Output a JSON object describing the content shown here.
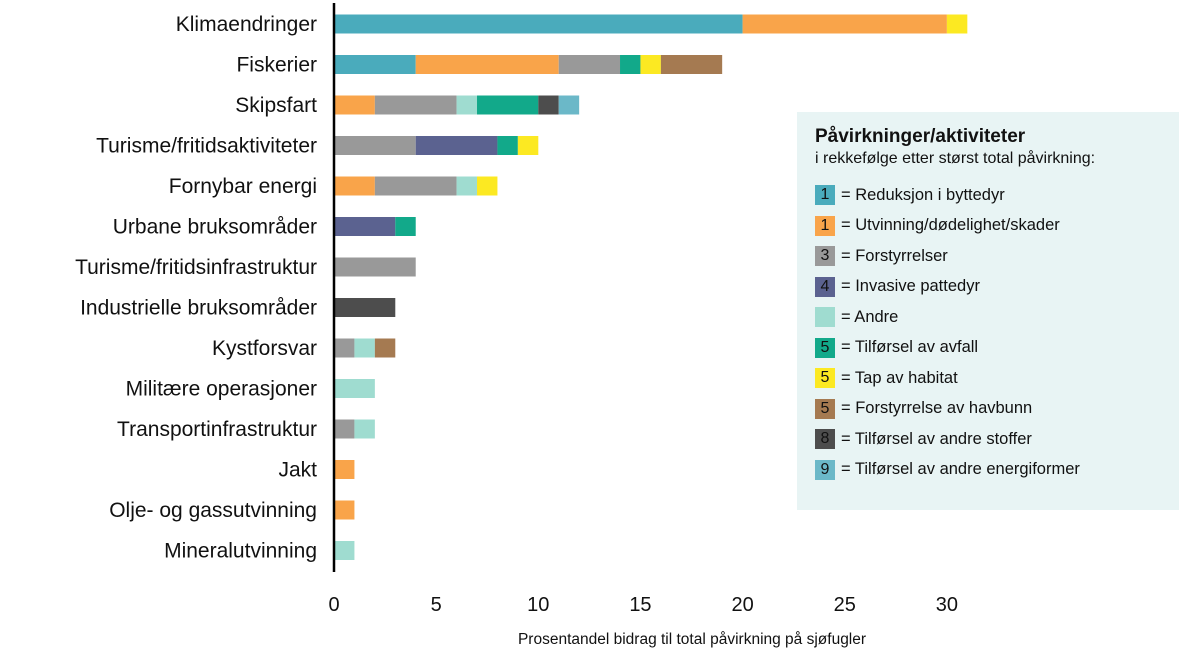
{
  "chart_data": {
    "type": "bar",
    "orientation": "horizontal",
    "stacked": true,
    "xlabel": "Prosentandel bidrag til total påvirkning på sjøfugler",
    "ylabel": "",
    "xlim": [
      0,
      31
    ],
    "xticks": [
      "0",
      "5",
      "10",
      "15",
      "20",
      "25",
      "30"
    ],
    "categories": [
      "Klimaendringer",
      "Fiskerier",
      "Skipsfart",
      "Turisme/fritidsaktiviteter",
      "Fornybar energi",
      "Urbane bruksområder",
      "Turisme/fritidsinfrastruktur",
      "Industrielle bruksområder",
      "Kystforsvar",
      "Militære operasjoner",
      "Transportinfrastruktur",
      "Jakt",
      "Olje- og gassutvinning",
      "Mineralutvinning"
    ],
    "series": [
      {
        "name": "Reduksjon i byttedyr",
        "rank": "1",
        "color": "#4aabbc",
        "values": [
          20,
          4,
          0,
          0,
          0,
          0,
          0,
          0,
          0,
          0,
          0,
          0,
          0,
          0
        ]
      },
      {
        "name": "Utvinning/dødelighet/skader",
        "rank": "1",
        "color": "#f9a44a",
        "values": [
          10,
          7,
          2,
          0,
          2,
          0,
          0,
          0,
          0,
          0,
          0,
          1,
          1,
          0
        ]
      },
      {
        "name": "Forstyrrelser",
        "rank": "3",
        "color": "#999999",
        "values": [
          0,
          3,
          4,
          4,
          4,
          0,
          4,
          0,
          1,
          0,
          1,
          0,
          0,
          0
        ]
      },
      {
        "name": "Invasive pattedyr",
        "rank": "4",
        "color": "#5b6290",
        "values": [
          0,
          0,
          0,
          4,
          0,
          3,
          0,
          0,
          0,
          0,
          0,
          0,
          0,
          0
        ]
      },
      {
        "name": "Andre",
        "rank": "",
        "color": "#9fdcd0",
        "values": [
          0,
          0,
          1,
          0,
          1,
          0,
          0,
          0,
          1,
          2,
          1,
          0,
          0,
          1
        ]
      },
      {
        "name": "Tilførsel av avfall",
        "rank": "5",
        "color": "#12a98a",
        "values": [
          0,
          1,
          3,
          1,
          0,
          1,
          0,
          0,
          0,
          0,
          0,
          0,
          0,
          0
        ]
      },
      {
        "name": "Tap av habitat",
        "rank": "5",
        "color": "#fce922",
        "values": [
          1,
          1,
          0,
          1,
          1,
          0,
          0,
          0,
          0,
          0,
          0,
          0,
          0,
          0
        ]
      },
      {
        "name": "Forstyrrelse av havbunn",
        "rank": "5",
        "color": "#a57a51",
        "values": [
          0,
          3,
          0,
          0,
          0,
          0,
          0,
          0,
          1,
          0,
          0,
          0,
          0,
          0
        ]
      },
      {
        "name": "Tilførsel av andre stoffer",
        "rank": "8",
        "color": "#4d4d4d",
        "values": [
          0,
          0,
          1,
          0,
          0,
          0,
          0,
          3,
          0,
          0,
          0,
          0,
          0,
          0
        ]
      },
      {
        "name": "Tilførsel av andre energiformer",
        "rank": "9",
        "color": "#6bb8c8",
        "values": [
          0,
          0,
          1,
          0,
          0,
          0,
          0,
          0,
          0,
          0,
          0,
          0,
          0,
          0
        ]
      }
    ],
    "legend": {
      "title": "Påvirkninger/aktiviteter",
      "subtitle": "i rekkefølge etter størst total påvirkning:",
      "placement": "right"
    },
    "grid": false
  }
}
